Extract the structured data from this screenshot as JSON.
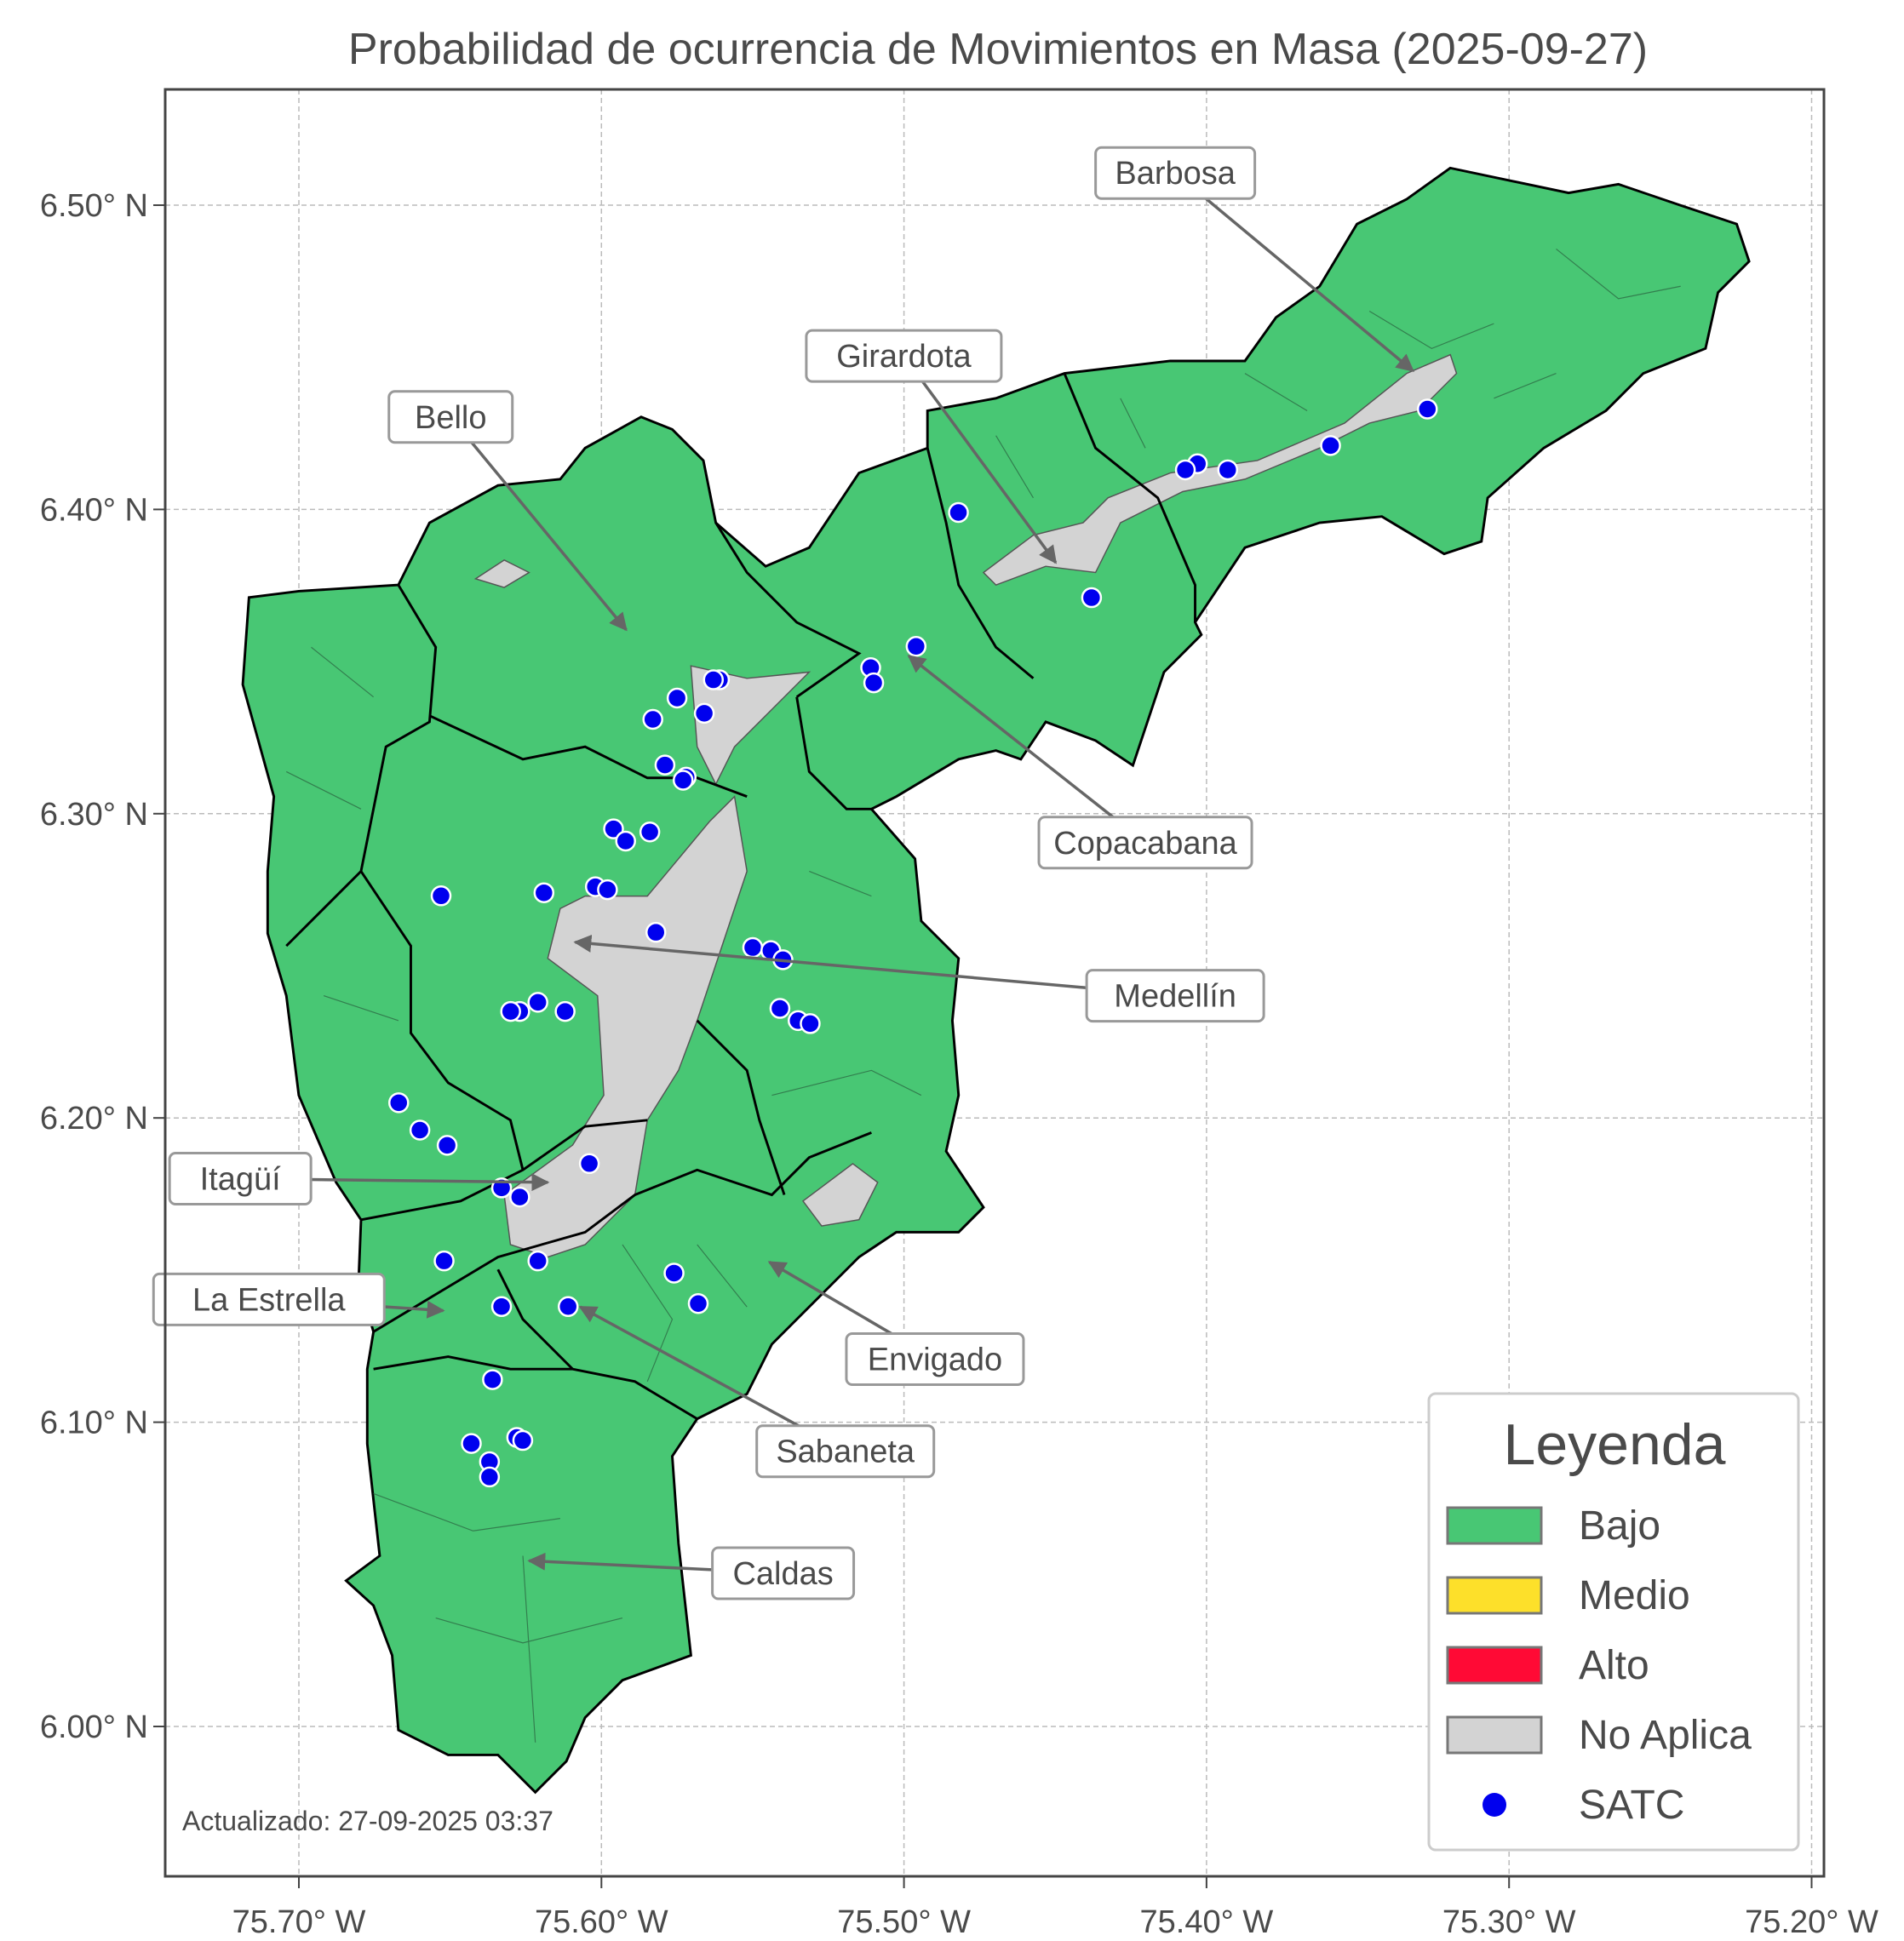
{
  "title": "Probabilidad de ocurrencia de Movimientos en Masa (2025-09-27)",
  "footer": "Actualizado: 27-09-2025 03:37",
  "x_ticks": [
    {
      "value": -75.7,
      "label": "75.70° W"
    },
    {
      "value": -75.6,
      "label": "75.60° W"
    },
    {
      "value": -75.5,
      "label": "75.50° W"
    },
    {
      "value": -75.4,
      "label": "75.40° W"
    },
    {
      "value": -75.3,
      "label": "75.30° W"
    },
    {
      "value": -75.2,
      "label": "75.20° W"
    }
  ],
  "y_ticks": [
    {
      "value": 6.0,
      "label": "6.00° N"
    },
    {
      "value": 6.1,
      "label": "6.10° N"
    },
    {
      "value": 6.2,
      "label": "6.20° N"
    },
    {
      "value": 6.3,
      "label": "6.30° N"
    },
    {
      "value": 6.4,
      "label": "6.40° N"
    },
    {
      "value": 6.5,
      "label": "6.50° N"
    }
  ],
  "legend": {
    "title": "Leyenda",
    "items": [
      {
        "label": "Bajo",
        "color": "#48c774",
        "kind": "patch"
      },
      {
        "label": "Medio",
        "color": "#fde02a",
        "kind": "patch"
      },
      {
        "label": "Alto",
        "color": "#ff0a35",
        "kind": "patch"
      },
      {
        "label": "No Aplica",
        "color": "#d3d3d3",
        "kind": "patch"
      },
      {
        "label": "SATC",
        "color": "#0000ee",
        "kind": "point"
      }
    ]
  },
  "municipalities": [
    {
      "name": "Barbosa",
      "level": "Bajo"
    },
    {
      "name": "Girardota",
      "level": "Bajo"
    },
    {
      "name": "Bello",
      "level": "Bajo"
    },
    {
      "name": "Copacabana",
      "level": "Bajo"
    },
    {
      "name": "Medellín",
      "level": "Bajo"
    },
    {
      "name": "Itagüí",
      "level": "Bajo"
    },
    {
      "name": "La Estrella",
      "level": "Bajo"
    },
    {
      "name": "Envigado",
      "level": "Bajo"
    },
    {
      "name": "Sabaneta",
      "level": "Bajo"
    },
    {
      "name": "Caldas",
      "level": "Bajo"
    }
  ],
  "satc_stations": [
    [
      -75.327,
      6.433
    ],
    [
      -75.359,
      6.421
    ],
    [
      -75.393,
      6.413
    ],
    [
      -75.403,
      6.415
    ],
    [
      -75.407,
      6.413
    ],
    [
      -75.482,
      6.399
    ],
    [
      -75.438,
      6.371
    ],
    [
      -75.496,
      6.355
    ],
    [
      -75.511,
      6.348
    ],
    [
      -75.51,
      6.343
    ],
    [
      -75.561,
      6.344
    ],
    [
      -75.563,
      6.344
    ],
    [
      -75.575,
      6.338
    ],
    [
      -75.566,
      6.333
    ],
    [
      -75.583,
      6.331
    ],
    [
      -75.579,
      6.316
    ],
    [
      -75.572,
      6.312
    ],
    [
      -75.573,
      6.311
    ],
    [
      -75.596,
      6.295
    ],
    [
      -75.592,
      6.291
    ],
    [
      -75.584,
      6.294
    ],
    [
      -75.653,
      6.273
    ],
    [
      -75.619,
      6.274
    ],
    [
      -75.602,
      6.276
    ],
    [
      -75.598,
      6.275
    ],
    [
      -75.582,
      6.261
    ],
    [
      -75.55,
      6.256
    ],
    [
      -75.544,
      6.255
    ],
    [
      -75.54,
      6.252
    ],
    [
      -75.541,
      6.236
    ],
    [
      -75.535,
      6.232
    ],
    [
      -75.531,
      6.231
    ],
    [
      -75.621,
      6.238
    ],
    [
      -75.612,
      6.235
    ],
    [
      -75.627,
      6.235
    ],
    [
      -75.63,
      6.235
    ],
    [
      -75.667,
      6.205
    ],
    [
      -75.66,
      6.196
    ],
    [
      -75.651,
      6.191
    ],
    [
      -75.604,
      6.185
    ],
    [
      -75.633,
      6.177
    ],
    [
      -75.627,
      6.174
    ],
    [
      -75.652,
      6.153
    ],
    [
      -75.621,
      6.153
    ],
    [
      -75.576,
      6.149
    ],
    [
      -75.568,
      6.139
    ],
    [
      -75.633,
      6.138
    ],
    [
      -75.611,
      6.138
    ],
    [
      -75.636,
      6.114
    ],
    [
      -75.643,
      6.093
    ],
    [
      -75.628,
      6.095
    ],
    [
      -75.626,
      6.094
    ],
    [
      -75.637,
      6.087
    ],
    [
      -75.637,
      6.082
    ]
  ]
}
